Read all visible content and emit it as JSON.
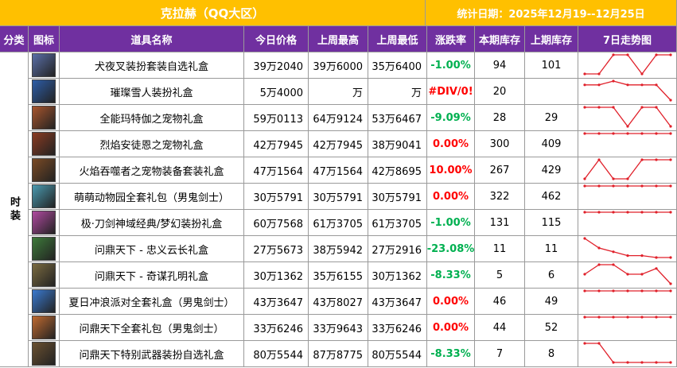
{
  "header": {
    "title": "克拉赫（QQ大区）",
    "date": "统计日期：2025年12月19--12月25日"
  },
  "columns": [
    "分类",
    "图标",
    "道具名称",
    "今日价格",
    "上周最高",
    "上周最低",
    "涨跌率",
    "本期库存",
    "上期库存",
    "7日走势图"
  ],
  "category": "时装",
  "rows": [
    {
      "name": "犬夜叉装扮套装自选礼盒",
      "today": "39万2040",
      "high": "39万6000",
      "low": "35万6400",
      "change": "-1.00%",
      "stock": 94,
      "prev_stock": 101,
      "trend": [
        0,
        0,
        1,
        1,
        0,
        1,
        1
      ]
    },
    {
      "name": "璀璨雪人装扮礼盒",
      "today": "5万4000",
      "high": "万",
      "low": "万",
      "change": "#DIV/0!",
      "stock": 20,
      "prev_stock": null,
      "trend": [
        0.8,
        0.8,
        1,
        0.8,
        0.8,
        0.8,
        0
      ]
    },
    {
      "name": "全能玛特伽之宠物礼盒",
      "today": "59万0113",
      "high": "64万9124",
      "low": "53万6467",
      "change": "-9.09%",
      "stock": 28,
      "prev_stock": 29,
      "trend": [
        1,
        1,
        1,
        0,
        1,
        1,
        0
      ]
    },
    {
      "name": "烈焰安徒恩之宠物礼盒",
      "today": "42万7945",
      "high": "42万7945",
      "low": "38万9041",
      "change": "0.00%",
      "stock": 300,
      "prev_stock": 409,
      "trend": [
        1,
        1,
        1,
        1,
        1,
        1,
        1
      ]
    },
    {
      "name": "火焰吞噬者之宠物装备套装礼盒",
      "today": "47万1564",
      "high": "47万1564",
      "low": "42万8695",
      "change": "10.00%",
      "stock": 267,
      "prev_stock": 429,
      "trend": [
        0,
        1,
        0,
        0,
        1,
        1,
        1
      ]
    },
    {
      "name": "萌萌动物园全套礼包（男鬼剑士）",
      "today": "30万5791",
      "high": "30万5791",
      "low": "30万5791",
      "change": "0.00%",
      "stock": 322,
      "prev_stock": 462,
      "trend": [
        1,
        1,
        1,
        1,
        1,
        1,
        1
      ]
    },
    {
      "name": "极·刀剑神域经典/梦幻装扮礼盒",
      "today": "60万7568",
      "high": "61万3705",
      "low": "61万3705",
      "change": "-1.00%",
      "stock": 131,
      "prev_stock": 115,
      "trend": [
        1,
        1,
        1,
        1,
        1,
        1,
        1
      ]
    },
    {
      "name": "问鼎天下 - 忠义云长礼盒",
      "today": "27万5673",
      "high": "38万5942",
      "low": "27万2916",
      "change": "-23.08%",
      "stock": 11,
      "prev_stock": 11,
      "trend": [
        1,
        0.5,
        0.3,
        0.1,
        0.1,
        0,
        0
      ]
    },
    {
      "name": "问鼎天下 - 奇谋孔明礼盒",
      "today": "30万1362",
      "high": "35万6155",
      "low": "30万1362",
      "change": "-8.33%",
      "stock": 5,
      "prev_stock": 6,
      "trend": [
        0.5,
        1,
        1,
        0.5,
        0.5,
        0.8,
        0
      ]
    },
    {
      "name": "夏日冲浪派对全套礼盒（男鬼剑士）",
      "today": "43万3647",
      "high": "43万8027",
      "low": "43万3647",
      "change": "0.00%",
      "stock": 46,
      "prev_stock": 49,
      "trend": [
        1,
        1,
        1,
        1,
        1,
        1,
        1
      ]
    },
    {
      "name": "问鼎天下全套礼包（男鬼剑士）",
      "today": "33万6246",
      "high": "33万9643",
      "low": "33万6246",
      "change": "0.00%",
      "stock": 44,
      "prev_stock": 52,
      "trend": [
        1,
        1,
        1,
        1,
        1,
        1,
        1
      ]
    },
    {
      "name": "问鼎天下特别武器装扮自选礼盒",
      "today": "80万5544",
      "high": "87万8775",
      "low": "80万5544",
      "change": "-8.33%",
      "stock": 7,
      "prev_stock": 8,
      "trend": [
        1,
        1,
        0,
        0,
        0,
        0,
        0
      ]
    }
  ]
}
